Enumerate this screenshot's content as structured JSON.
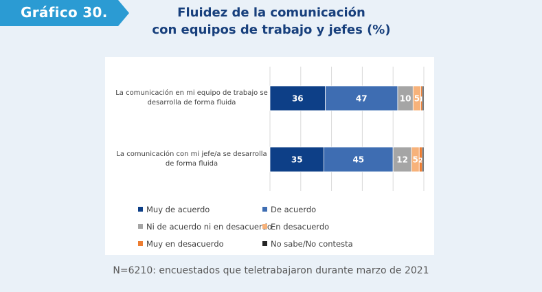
{
  "header": {
    "badge": "Gráfico 30.",
    "title_line1": "Fluidez de la comunicación",
    "title_line2": "con equipos de trabajo y jefes (%)"
  },
  "colors": {
    "badge": "#2b9bd3",
    "title": "#173f7c",
    "background": "#eaf1f8"
  },
  "chart_data": {
    "type": "bar",
    "orientation": "horizontal",
    "stacked": true,
    "xlim": [
      0,
      100
    ],
    "categories": [
      [
        "La comunicación en mi equipo de trabajo se",
        "desarrolla de forma fluida"
      ],
      [
        "La comunicación con mi jefe/a se desarrolla",
        "de forma fluida"
      ]
    ],
    "series": [
      {
        "name": "Muy de acuerdo",
        "color": "#0d3f87",
        "values": [
          36,
          35
        ]
      },
      {
        "name": "De acuerdo",
        "color": "#3e6db2",
        "values": [
          47,
          45
        ]
      },
      {
        "name": "Ni de acuerdo ni en desacuerdo",
        "color": "#a5a5a5",
        "values": [
          10,
          12
        ]
      },
      {
        "name": "En desacuerdo",
        "color": "#f7b27a",
        "values": [
          5,
          5
        ]
      },
      {
        "name": "Muy en desacuerdo",
        "color": "#ed7d31",
        "values": [
          1,
          2
        ]
      },
      {
        "name": "No sabe/No contesta",
        "color": "#262626",
        "values": [
          1,
          1
        ]
      }
    ],
    "data_labels": [
      [
        "36",
        "47",
        "10",
        "5",
        "1",
        ""
      ],
      [
        "35",
        "45",
        "12",
        "5",
        "2",
        ""
      ]
    ],
    "legend_position": "bottom",
    "grid": true
  },
  "footnote": "N=6210: encuestados que teletrabajaron durante marzo de 2021"
}
